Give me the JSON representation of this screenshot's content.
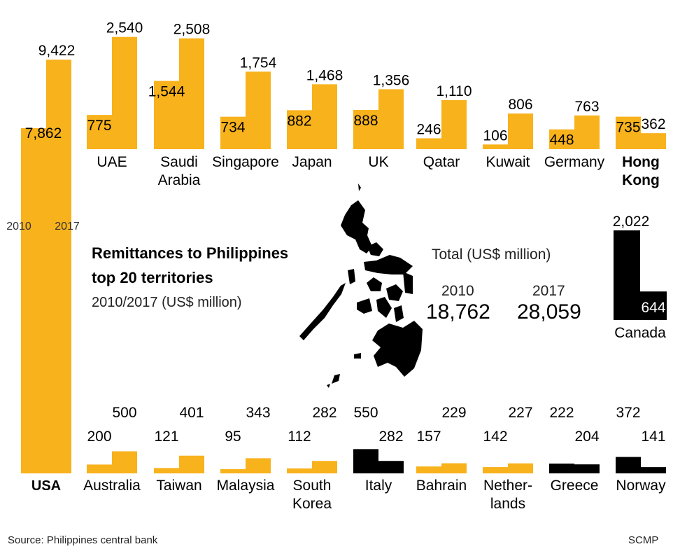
{
  "title_line1": "Remittances to Philippines",
  "title_line2": "top 20 territories",
  "subtitle": "2010/2017 (US$ million)",
  "totals": {
    "label": "Total (US$ million)",
    "year_a": "2010",
    "year_b": "2017",
    "value_a": "18,762",
    "value_b": "28,059"
  },
  "source": "Source: Philippines central bank",
  "credit": "SCMP",
  "colors": {
    "highlight": "#f8b21c",
    "other": "#000000"
  },
  "chart_data": {
    "type": "bar",
    "series": [
      {
        "name": "2010",
        "key": "v2010"
      },
      {
        "name": "2017",
        "key": "v2017"
      }
    ],
    "items": [
      {
        "name": "USA",
        "v2010": 7862,
        "v2017": 9422,
        "v2010_label": "7,862",
        "v2017_label": "9,422",
        "color": "yellow",
        "bold": true
      },
      {
        "name": "UAE",
        "v2010": 775,
        "v2017": 2540,
        "v2010_label": "775",
        "v2017_label": "2,540",
        "color": "yellow"
      },
      {
        "name": "Saudi Arabia",
        "v2010": 1544,
        "v2017": 2508,
        "v2010_label": "1,544",
        "v2017_label": "2,508",
        "color": "yellow"
      },
      {
        "name": "Singapore",
        "v2010": 734,
        "v2017": 1754,
        "v2010_label": "734",
        "v2017_label": "1,754",
        "color": "yellow"
      },
      {
        "name": "Japan",
        "v2010": 882,
        "v2017": 1468,
        "v2010_label": "882",
        "v2017_label": "1,468",
        "color": "yellow"
      },
      {
        "name": "UK",
        "v2010": 888,
        "v2017": 1356,
        "v2010_label": "888",
        "v2017_label": "1,356",
        "color": "yellow"
      },
      {
        "name": "Qatar",
        "v2010": 246,
        "v2017": 1110,
        "v2010_label": "246",
        "v2017_label": "1,110",
        "color": "yellow"
      },
      {
        "name": "Kuwait",
        "v2010": 106,
        "v2017": 806,
        "v2010_label": "106",
        "v2017_label": "806",
        "color": "yellow"
      },
      {
        "name": "Germany",
        "v2010": 448,
        "v2017": 763,
        "v2010_label": "448",
        "v2017_label": "763",
        "color": "yellow"
      },
      {
        "name": "Hong Kong",
        "v2010": 735,
        "v2017": 362,
        "v2010_label": "735",
        "v2017_label": "362",
        "color": "yellow",
        "bold": true
      },
      {
        "name": "Canada",
        "v2010": 2022,
        "v2017": 644,
        "v2010_label": "2,022",
        "v2017_label": "644",
        "color": "black"
      },
      {
        "name": "Australia",
        "v2010": 200,
        "v2017": 500,
        "v2010_label": "200",
        "v2017_label": "500",
        "color": "yellow"
      },
      {
        "name": "Taiwan",
        "v2010": 121,
        "v2017": 401,
        "v2010_label": "121",
        "v2017_label": "401",
        "color": "yellow"
      },
      {
        "name": "Malaysia",
        "v2010": 95,
        "v2017": 343,
        "v2010_label": "95",
        "v2017_label": "343",
        "color": "yellow"
      },
      {
        "name": "South Korea",
        "v2010": 112,
        "v2017": 282,
        "v2010_label": "112",
        "v2017_label": "282",
        "color": "yellow"
      },
      {
        "name": "Italy",
        "v2010": 550,
        "v2017": 282,
        "v2010_label": "550",
        "v2017_label": "282",
        "color": "black"
      },
      {
        "name": "Bahrain",
        "v2010": 157,
        "v2017": 229,
        "v2010_label": "157",
        "v2017_label": "229",
        "color": "yellow"
      },
      {
        "name": "Netherlands",
        "v2010": 142,
        "v2017": 227,
        "v2010_label": "142",
        "v2017_label": "227",
        "color": "yellow"
      },
      {
        "name": "Greece",
        "v2010": 222,
        "v2017": 204,
        "v2010_label": "222",
        "v2017_label": "204",
        "color": "black"
      },
      {
        "name": "Norway",
        "v2010": 372,
        "v2017": 141,
        "v2010_label": "372",
        "v2017_label": "141",
        "color": "black"
      }
    ],
    "usa_inner_labels": {
      "a": "2010",
      "b": "2017"
    },
    "wrapped_labels": {
      "Saudi Arabia": [
        "Saudi",
        "Arabia"
      ],
      "Hong Kong": [
        "Hong",
        "Kong"
      ],
      "South Korea": [
        "South",
        "Korea"
      ],
      "Netherlands": [
        "Nether-",
        "lands"
      ]
    }
  }
}
